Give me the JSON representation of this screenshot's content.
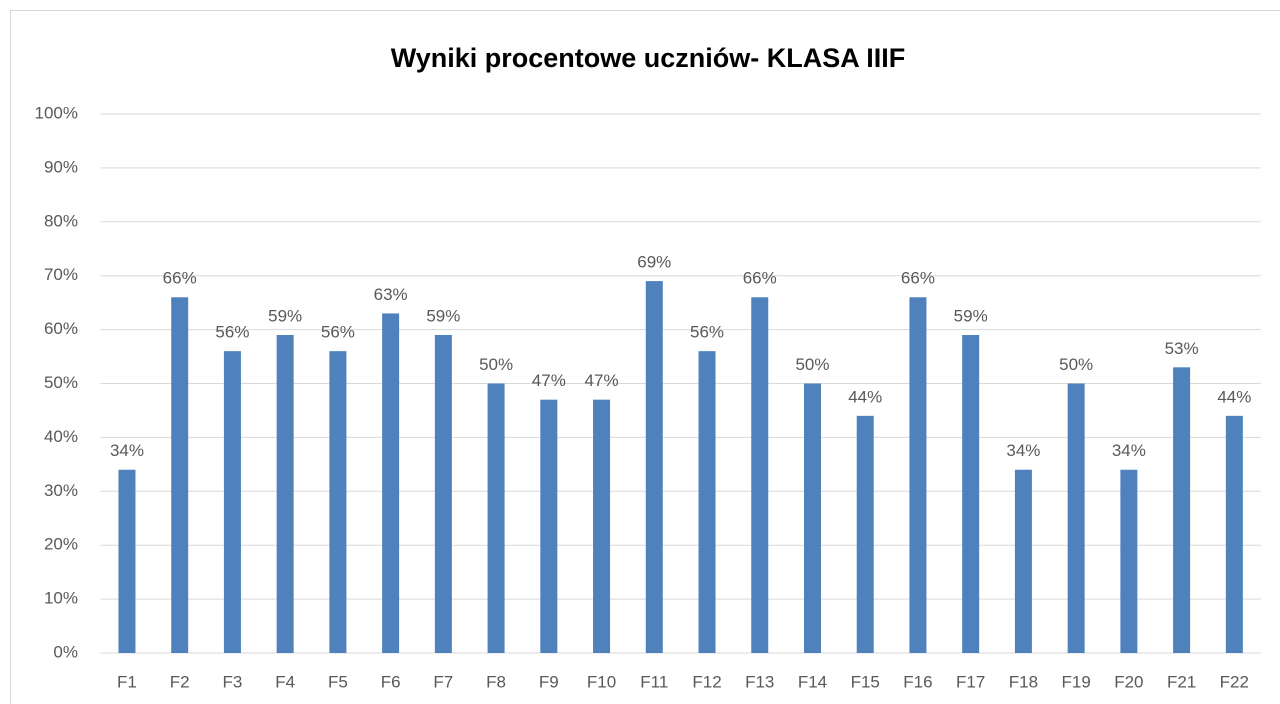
{
  "chart_data": {
    "type": "bar",
    "title": "Wyniki procentowe uczniów- KLASA IIIF",
    "categories": [
      "F1",
      "F2",
      "F3",
      "F4",
      "F5",
      "F6",
      "F7",
      "F8",
      "F9",
      "F10",
      "F11",
      "F12",
      "F13",
      "F14",
      "F15",
      "F16",
      "F17",
      "F18",
      "F19",
      "F20",
      "F21",
      "F22"
    ],
    "values": [
      34,
      66,
      56,
      59,
      56,
      63,
      59,
      50,
      47,
      47,
      69,
      56,
      66,
      50,
      44,
      66,
      59,
      34,
      50,
      34,
      53,
      44
    ],
    "value_labels": [
      "34%",
      "66%",
      "56%",
      "59%",
      "56%",
      "63%",
      "59%",
      "50%",
      "47%",
      "47%",
      "69%",
      "56%",
      "66%",
      "50%",
      "44%",
      "66%",
      "59%",
      "34%",
      "50%",
      "34%",
      "53%",
      "44%"
    ],
    "color": "#4f81bd",
    "ylim": [
      0,
      100
    ],
    "yticks": [
      {
        "value": 0,
        "label": "0%"
      },
      {
        "value": 10,
        "label": "10%"
      },
      {
        "value": 20,
        "label": "20%"
      },
      {
        "value": 30,
        "label": "30%"
      },
      {
        "value": 40,
        "label": "40%"
      },
      {
        "value": 50,
        "label": "50%"
      },
      {
        "value": 60,
        "label": "60%"
      },
      {
        "value": 70,
        "label": "70%"
      },
      {
        "value": 80,
        "label": "80%"
      },
      {
        "value": 90,
        "label": "90%"
      },
      {
        "value": 100,
        "label": "100%"
      }
    ],
    "grid": true
  }
}
